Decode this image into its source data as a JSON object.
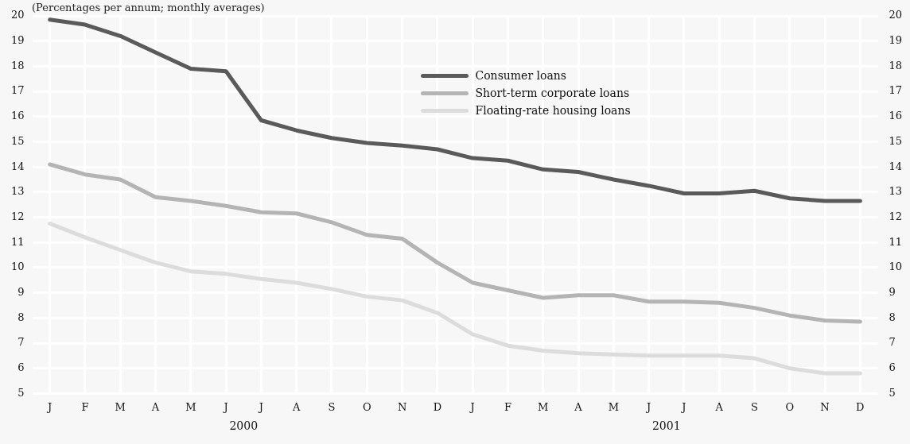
{
  "chart_data": {
    "type": "line",
    "subtitle": "(Percentages per annum; monthly averages)",
    "categories": [
      "J",
      "F",
      "M",
      "A",
      "M",
      "J",
      "J",
      "A",
      "S",
      "O",
      "N",
      "D",
      "J",
      "F",
      "M",
      "A",
      "M",
      "J",
      "J",
      "A",
      "S",
      "O",
      "N",
      "D"
    ],
    "series": [
      {
        "name": "Consumer loans",
        "color": "#5a5a5a",
        "values": [
          19.85,
          19.65,
          19.2,
          18.55,
          17.9,
          17.8,
          15.85,
          15.45,
          15.15,
          14.95,
          14.85,
          14.7,
          14.35,
          14.25,
          13.9,
          13.8,
          13.5,
          13.25,
          12.95,
          12.95,
          13.05,
          12.75,
          12.65,
          12.65
        ]
      },
      {
        "name": "Short-term corporate loans",
        "color": "#b4b4b4",
        "values": [
          14.1,
          13.7,
          13.5,
          12.8,
          12.65,
          12.45,
          12.2,
          12.15,
          11.8,
          11.3,
          11.15,
          10.2,
          9.4,
          9.1,
          8.8,
          8.9,
          8.9,
          8.65,
          8.65,
          8.6,
          8.4,
          8.1,
          7.9,
          7.85
        ]
      },
      {
        "name": "Floating-rate housing loans",
        "color": "#dcdcdc",
        "values": [
          11.75,
          11.2,
          10.7,
          10.2,
          9.85,
          9.75,
          9.55,
          9.4,
          9.15,
          8.85,
          8.7,
          8.2,
          7.35,
          6.9,
          6.7,
          6.6,
          6.55,
          6.5,
          6.5,
          6.5,
          6.4,
          6.0,
          5.8,
          5.8
        ]
      }
    ],
    "ylim": [
      5,
      20
    ],
    "yticks": [
      5,
      6,
      7,
      8,
      9,
      10,
      11,
      12,
      13,
      14,
      15,
      16,
      17,
      18,
      19,
      20
    ],
    "y2lim": [
      5,
      20
    ],
    "y2ticks": [
      5,
      6,
      7,
      8,
      9,
      10,
      11,
      12,
      13,
      14,
      15,
      16,
      17,
      18,
      19,
      20
    ],
    "annotations": [
      "2000",
      "2001"
    ],
    "grid": true,
    "legend": "top",
    "marker": "none",
    "line_style": "solid"
  }
}
